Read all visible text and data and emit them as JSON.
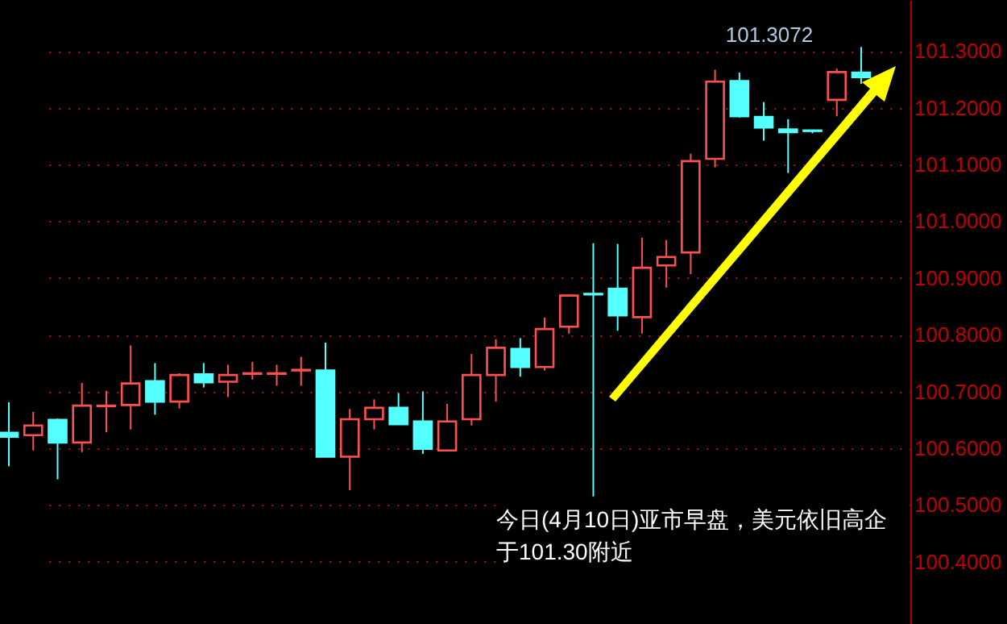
{
  "chart_data": {
    "type": "candlestick",
    "categories": [
      null,
      null,
      null,
      null,
      null,
      null,
      null,
      null,
      null,
      null,
      null,
      null,
      null,
      null,
      null,
      null,
      null,
      null,
      null,
      null,
      null,
      null,
      null,
      null,
      null,
      null,
      null,
      null,
      null,
      null,
      null,
      null,
      null,
      null,
      null,
      null
    ],
    "ohlc": [
      [
        100.627,
        100.681,
        100.568,
        100.62
      ],
      [
        100.623,
        100.664,
        100.596,
        100.64
      ],
      [
        100.65,
        100.652,
        100.545,
        100.61
      ],
      [
        100.61,
        100.715,
        100.593,
        100.675
      ],
      [
        100.674,
        100.701,
        100.628,
        100.675
      ],
      [
        100.676,
        100.781,
        100.633,
        100.714
      ],
      [
        100.718,
        100.75,
        100.659,
        100.682
      ],
      [
        100.682,
        100.732,
        100.67,
        100.729
      ],
      [
        100.73,
        100.75,
        100.707,
        100.716
      ],
      [
        100.717,
        100.747,
        100.69,
        100.729
      ],
      [
        100.731,
        100.752,
        100.721,
        100.732
      ],
      [
        100.731,
        100.747,
        100.71,
        100.732
      ],
      [
        100.737,
        100.761,
        100.71,
        100.738
      ],
      [
        100.737,
        100.786,
        100.585,
        100.585
      ],
      [
        100.585,
        100.669,
        100.526,
        100.651
      ],
      [
        100.651,
        100.686,
        100.633,
        100.671
      ],
      [
        100.671,
        100.697,
        100.642,
        100.642
      ],
      [
        100.647,
        100.7,
        100.59,
        100.599
      ],
      [
        100.596,
        100.678,
        100.594,
        100.647
      ],
      [
        100.651,
        100.766,
        100.64,
        100.729
      ],
      [
        100.729,
        100.792,
        100.682,
        100.777
      ],
      [
        100.775,
        100.794,
        100.726,
        100.743
      ],
      [
        100.743,
        100.83,
        100.737,
        100.81
      ],
      [
        100.814,
        100.87,
        100.802,
        100.869
      ],
      [
        100.872,
        100.961,
        100.515,
        100.871
      ],
      [
        100.881,
        100.96,
        100.807,
        100.834
      ],
      [
        100.831,
        100.971,
        100.802,
        100.918
      ],
      [
        100.922,
        100.967,
        100.883,
        100.937
      ],
      [
        100.945,
        101.119,
        100.907,
        101.106
      ],
      [
        101.11,
        101.267,
        101.095,
        101.246
      ],
      [
        101.247,
        101.262,
        101.183,
        101.185
      ],
      [
        101.184,
        101.21,
        101.142,
        101.165
      ],
      [
        101.162,
        101.18,
        101.085,
        101.157
      ],
      [
        101.16,
        101.16,
        101.155,
        101.159
      ],
      [
        101.214,
        101.269,
        101.185,
        101.263
      ],
      [
        101.262,
        101.3072,
        101.242,
        101.254
      ]
    ],
    "ylim": [
      100.29,
      101.39
    ],
    "yticks": [
      {
        "value": 100.4,
        "label": "100.4000"
      },
      {
        "value": 100.5,
        "label": "100.5000"
      },
      {
        "value": 100.6,
        "label": "100.6000"
      },
      {
        "value": 100.7,
        "label": "100.7000"
      },
      {
        "value": 100.8,
        "label": "100.8000"
      },
      {
        "value": 100.9,
        "label": "100.9000"
      },
      {
        "value": 101.0,
        "label": "101.0000"
      },
      {
        "value": 101.1,
        "label": "101.1000"
      },
      {
        "value": 101.2,
        "label": "101.2000"
      },
      {
        "value": 101.3,
        "label": "101.3000"
      }
    ],
    "grid": "y",
    "annotations": [
      "101.3072",
      "今日(4月10日)亚市早盘，美元依旧高企于101.30附近"
    ]
  }
}
